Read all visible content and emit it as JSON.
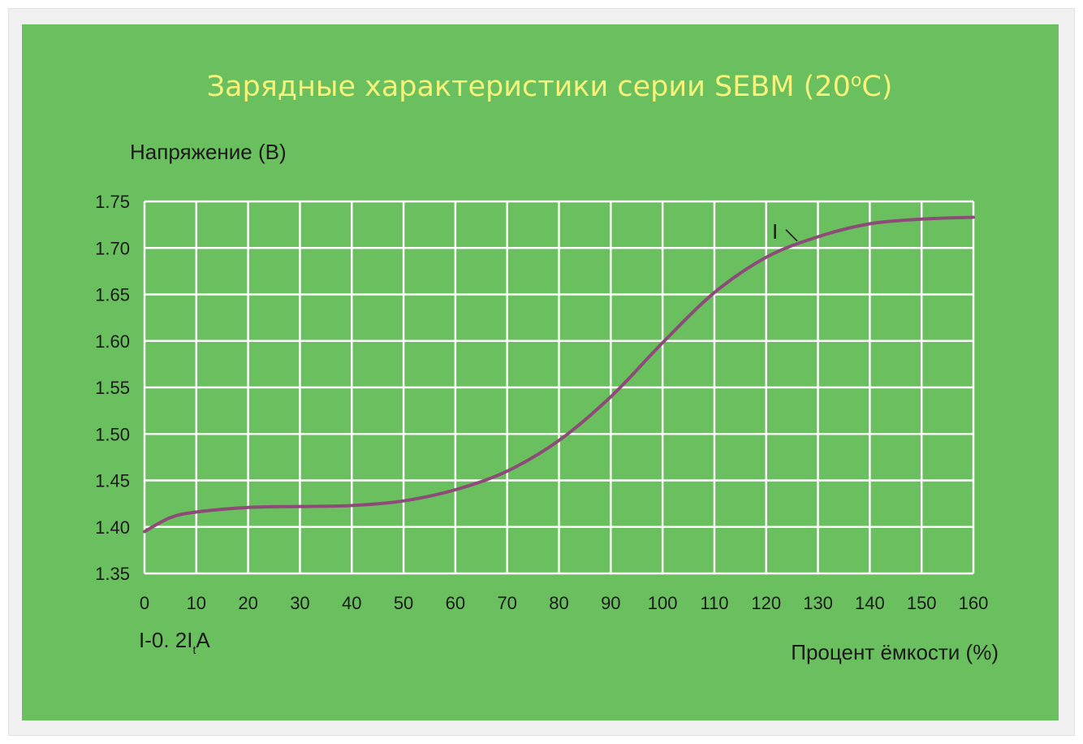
{
  "chart_data": {
    "type": "line",
    "title": "Зарядные характеристики серии SEBM (20",
    "title_sup": "o",
    "title_tail": "C)",
    "ylabel": "Напряжение (В)",
    "xlabel": "Процент ёмкости (%)",
    "xlim": [
      0,
      160
    ],
    "ylim": [
      1.35,
      1.75
    ],
    "xticks": [
      0,
      10,
      20,
      30,
      40,
      50,
      60,
      70,
      80,
      90,
      100,
      110,
      120,
      130,
      140,
      150,
      160
    ],
    "yticks": [
      "1.35",
      "1.40",
      "1.45",
      "1.50",
      "1.55",
      "1.60",
      "1.65",
      "1.70",
      "1.75"
    ],
    "grid": true,
    "condition_label": {
      "main": "I-0. 2I",
      "sub": "t",
      "tail": "A"
    },
    "series": [
      {
        "name": "I",
        "color": "#8e4a78",
        "x": [
          0,
          5,
          10,
          20,
          30,
          40,
          50,
          60,
          70,
          80,
          90,
          100,
          110,
          120,
          130,
          140,
          150,
          160
        ],
        "y": [
          1.395,
          1.41,
          1.416,
          1.421,
          1.422,
          1.423,
          1.428,
          1.44,
          1.46,
          1.493,
          1.54,
          1.598,
          1.652,
          1.69,
          1.712,
          1.726,
          1.731,
          1.733
        ]
      }
    ]
  }
}
